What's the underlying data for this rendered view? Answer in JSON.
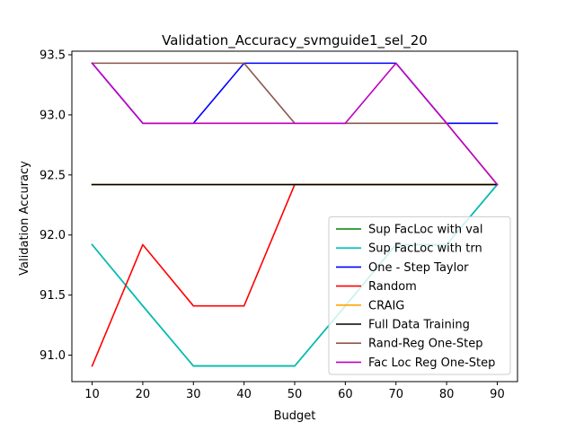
{
  "chart_data": {
    "type": "line",
    "title": "Validation_Accuracy_svmguide1_sel_20",
    "xlabel": "Budget",
    "ylabel": "Validation Accuracy",
    "x": [
      10,
      20,
      30,
      40,
      50,
      60,
      70,
      80,
      90
    ],
    "x_ticks": [
      "10",
      "20",
      "30",
      "40",
      "50",
      "60",
      "70",
      "80",
      "90"
    ],
    "y_ticks": [
      "91.0",
      "91.5",
      "92.0",
      "92.5",
      "93.0",
      "93.5"
    ],
    "xlim": [
      6,
      94
    ],
    "ylim": [
      90.78,
      93.53
    ],
    "grid": false,
    "legend_position": "lower-right",
    "series": [
      {
        "name": "Sup FacLoc with val",
        "color": "#008000",
        "values": [
          91.92,
          91.41,
          90.91,
          90.91,
          90.91,
          91.41,
          91.92,
          91.92,
          92.42
        ]
      },
      {
        "name": "Sup FacLoc with trn",
        "color": "#00bfbf",
        "values": [
          91.92,
          91.41,
          90.91,
          90.91,
          90.91,
          91.41,
          91.92,
          91.92,
          92.42
        ]
      },
      {
        "name": "One - Step Taylor",
        "color": "#0000ff",
        "values": [
          93.43,
          92.93,
          92.93,
          93.43,
          93.43,
          93.43,
          93.43,
          92.93,
          92.93
        ]
      },
      {
        "name": "Random",
        "color": "#ff0000",
        "values": [
          90.91,
          91.92,
          91.41,
          91.41,
          92.42,
          92.42,
          92.42,
          92.42,
          92.42
        ]
      },
      {
        "name": "CRAIG",
        "color": "#ffa500",
        "values": [
          92.42,
          92.42,
          92.42,
          92.42,
          92.42,
          92.42,
          92.42,
          92.42,
          92.42
        ]
      },
      {
        "name": "Full Data Training",
        "color": "#000000",
        "values": [
          92.42,
          92.42,
          92.42,
          92.42,
          92.42,
          92.42,
          92.42,
          92.42,
          92.42
        ]
      },
      {
        "name": "Rand-Reg One-Step",
        "color": "#8c564b",
        "values": [
          93.43,
          93.43,
          93.43,
          93.43,
          92.93,
          92.93,
          92.93,
          92.93,
          92.42
        ]
      },
      {
        "name": "Fac Loc Reg One-Step",
        "color": "#bf00bf",
        "values": [
          93.43,
          92.93,
          92.93,
          92.93,
          92.93,
          92.93,
          93.43,
          92.93,
          92.42
        ]
      }
    ]
  }
}
